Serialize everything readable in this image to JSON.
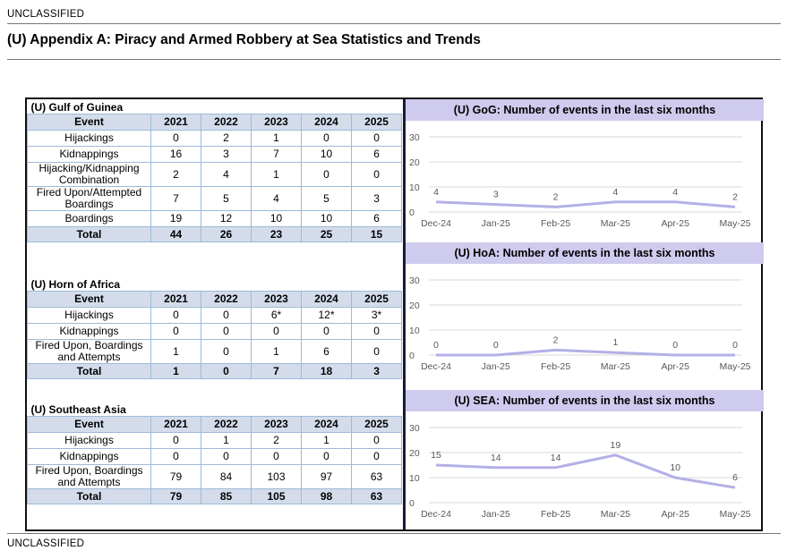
{
  "banner_top": "UNCLASSIFIED",
  "banner_bottom": "UNCLASSIFIED",
  "title": "(U) Appendix A: Piracy and Armed Robbery at Sea Statistics and Trends",
  "tables": [
    {
      "name": "(U) Gulf of Guinea",
      "headers": [
        "Event",
        "2021",
        "2022",
        "2023",
        "2024",
        "2025"
      ],
      "rows": [
        [
          "Hijackings",
          "0",
          "2",
          "1",
          "0",
          "0"
        ],
        [
          "Kidnappings",
          "16",
          "3",
          "7",
          "10",
          "6"
        ],
        [
          "Hijacking/Kidnapping Combination",
          "2",
          "4",
          "1",
          "0",
          "0"
        ],
        [
          "Fired Upon/Attempted Boardings",
          "7",
          "5",
          "4",
          "5",
          "3"
        ],
        [
          "Boardings",
          "19",
          "12",
          "10",
          "10",
          "6"
        ]
      ],
      "total": [
        "Total",
        "44",
        "26",
        "23",
        "25",
        "15"
      ]
    },
    {
      "name": "(U) Horn of Africa",
      "headers": [
        "Event",
        "2021",
        "2022",
        "2023",
        "2024",
        "2025"
      ],
      "rows": [
        [
          "Hijackings",
          "0",
          "0",
          "6*",
          "12*",
          "3*"
        ],
        [
          "Kidnappings",
          "0",
          "0",
          "0",
          "0",
          "0"
        ],
        [
          "Fired Upon, Boardings and Attempts",
          "1",
          "0",
          "1",
          "6",
          "0"
        ]
      ],
      "total": [
        "Total",
        "1",
        "0",
        "7",
        "18",
        "3"
      ]
    },
    {
      "name": "(U) Southeast Asia",
      "headers": [
        "Event",
        "2021",
        "2022",
        "2023",
        "2024",
        "2025"
      ],
      "rows": [
        [
          "Hijackings",
          "0",
          "1",
          "2",
          "1",
          "0"
        ],
        [
          "Kidnappings",
          "0",
          "0",
          "0",
          "0",
          "0"
        ],
        [
          "Fired Upon, Boardings and Attempts",
          "79",
          "84",
          "103",
          "97",
          "63"
        ]
      ],
      "total": [
        "Total",
        "79",
        "85",
        "105",
        "98",
        "63"
      ]
    }
  ],
  "chart_data": [
    {
      "type": "line",
      "title": "(U) GoG: Number of events in the last six months",
      "categories": [
        "Dec-24",
        "Jan-25",
        "Feb-25",
        "Mar-25",
        "Apr-25",
        "May-25"
      ],
      "values": [
        4,
        3,
        2,
        4,
        4,
        2
      ],
      "yticks": [
        0,
        10,
        20,
        30
      ],
      "ylim": [
        0,
        30
      ],
      "color": "#b3b0e6",
      "grid": true
    },
    {
      "type": "line",
      "title": "(U) HoA: Number of events in the last six months",
      "categories": [
        "Dec-24",
        "Jan-25",
        "Feb-25",
        "Mar-25",
        "Apr-25",
        "May-25"
      ],
      "values": [
        0,
        0,
        2,
        1,
        0,
        0
      ],
      "yticks": [
        0,
        10,
        20,
        30
      ],
      "ylim": [
        0,
        30
      ],
      "color": "#b3b0e6",
      "grid": true
    },
    {
      "type": "line",
      "title": "(U) SEA: Number of events in the last six months",
      "categories": [
        "Dec-24",
        "Jan-25",
        "Feb-25",
        "Mar-25",
        "Apr-25",
        "May-25"
      ],
      "values": [
        15,
        14,
        14,
        19,
        10,
        6
      ],
      "yticks": [
        0,
        10,
        20,
        30
      ],
      "ylim": [
        0,
        30
      ],
      "color": "#b3b0e6",
      "grid": true
    }
  ]
}
